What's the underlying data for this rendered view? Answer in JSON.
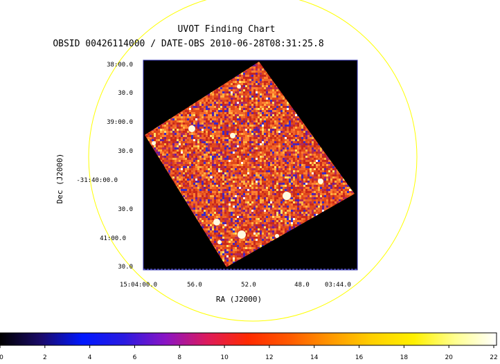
{
  "chart_data": {
    "type": "heatmap",
    "title": "UVOT Finding Chart",
    "subtitle": "OBSID 00426114000 / DATE-OBS 2010-06-28T08:31:25.8",
    "xlabel": "RA (J2000)",
    "ylabel": "Dec (J2000)",
    "x_ticks": [
      "15:04:00.0",
      "56.0",
      "52.0",
      "48.0",
      "03:44.0"
    ],
    "y_ticks": [
      "38:00.0",
      "30.0",
      "39:00.0",
      "30.0",
      "-31:40:00.0",
      "30.0",
      "41:00.0",
      "30.0"
    ],
    "colorbar": {
      "ticks": [
        "0",
        "2",
        "4",
        "6",
        "8",
        "10",
        "12",
        "14",
        "16",
        "18",
        "20",
        "22"
      ],
      "range": [
        0,
        22
      ],
      "colors": [
        "#000000",
        "#1a0a6a",
        "#0018ff",
        "#2a1ae0",
        "#8a14c4",
        "#dc1a5c",
        "#ff2a00",
        "#ff5a00",
        "#ff9800",
        "#ffd000",
        "#fff000",
        "#ffff90",
        "#ffffff"
      ]
    },
    "image_colors": {
      "background": "#000000",
      "frame": "#2a2aa8",
      "circle": "#ffff00",
      "pixels": [
        "#c8281c",
        "#e0481a",
        "#f06428",
        "#ff8030",
        "#b42a58",
        "#6a1e98",
        "#3a2ac8",
        "#ffb040",
        "#ffe066",
        "#ffffff"
      ],
      "weights": [
        16,
        18,
        16,
        10,
        8,
        5,
        4,
        6,
        2,
        1
      ]
    }
  }
}
